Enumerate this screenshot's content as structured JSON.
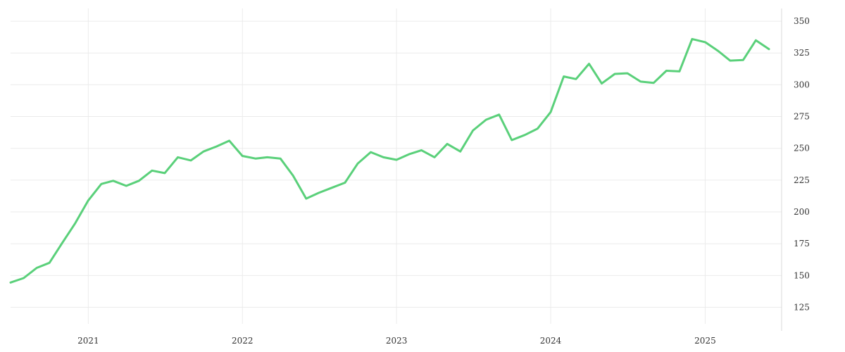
{
  "chart_data": {
    "type": "line",
    "title": "",
    "xlabel": "",
    "ylabel": "",
    "x_ticks": [
      "2021",
      "2022",
      "2023",
      "2024",
      "2025"
    ],
    "y_ticks": [
      125,
      150,
      175,
      200,
      225,
      250,
      275,
      300,
      325,
      350
    ],
    "xlim": [
      "2020-07-01",
      "2025-07-01"
    ],
    "ylim": [
      112,
      360
    ],
    "grid": true,
    "y_axis_side": "right",
    "color": "#5ad07a",
    "series": [
      {
        "points": [
          [
            "2020-07-01",
            144.5
          ],
          [
            "2020-08-01",
            148
          ],
          [
            "2020-09-01",
            156
          ],
          [
            "2020-10-01",
            160
          ],
          [
            "2020-11-01",
            176
          ],
          [
            "2020-12-01",
            191
          ],
          [
            "2021-01-01",
            209
          ],
          [
            "2021-02-01",
            222
          ],
          [
            "2021-03-01",
            224.5
          ],
          [
            "2021-04-01",
            220.5
          ],
          [
            "2021-05-01",
            224.5
          ],
          [
            "2021-06-01",
            232.5
          ],
          [
            "2021-07-01",
            230.5
          ],
          [
            "2021-08-01",
            243
          ],
          [
            "2021-09-01",
            240.5
          ],
          [
            "2021-10-01",
            247.5
          ],
          [
            "2021-11-01",
            251.5
          ],
          [
            "2021-12-01",
            256
          ],
          [
            "2022-01-01",
            244
          ],
          [
            "2022-02-01",
            242
          ],
          [
            "2022-03-01",
            243
          ],
          [
            "2022-04-01",
            242
          ],
          [
            "2022-05-01",
            228.5
          ],
          [
            "2022-06-01",
            210.5
          ],
          [
            "2022-07-01",
            215
          ],
          [
            "2022-08-01",
            219
          ],
          [
            "2022-09-01",
            223
          ],
          [
            "2022-10-01",
            238
          ],
          [
            "2022-11-01",
            247
          ],
          [
            "2022-12-01",
            243
          ],
          [
            "2023-01-01",
            241
          ],
          [
            "2023-02-01",
            245.5
          ],
          [
            "2023-03-01",
            248.5
          ],
          [
            "2023-04-01",
            243
          ],
          [
            "2023-05-01",
            253.5
          ],
          [
            "2023-06-01",
            247.5
          ],
          [
            "2023-07-01",
            264
          ],
          [
            "2023-08-01",
            272.5
          ],
          [
            "2023-09-01",
            276.5
          ],
          [
            "2023-10-01",
            256.5
          ],
          [
            "2023-11-01",
            260.5
          ],
          [
            "2023-12-01",
            265.5
          ],
          [
            "2024-01-01",
            278.5
          ],
          [
            "2024-02-01",
            306.5
          ],
          [
            "2024-03-01",
            304.5
          ],
          [
            "2024-04-01",
            316.5
          ],
          [
            "2024-05-01",
            301
          ],
          [
            "2024-06-01",
            308.5
          ],
          [
            "2024-07-01",
            309
          ],
          [
            "2024-08-01",
            302.5
          ],
          [
            "2024-09-01",
            301.5
          ],
          [
            "2024-10-01",
            311
          ],
          [
            "2024-11-01",
            310.5
          ],
          [
            "2024-12-01",
            336
          ],
          [
            "2025-01-01",
            333.5
          ],
          [
            "2025-02-01",
            326.5
          ],
          [
            "2025-03-01",
            319
          ],
          [
            "2025-04-01",
            319.5
          ],
          [
            "2025-05-01",
            335
          ],
          [
            "2025-06-01",
            328
          ]
        ]
      }
    ]
  }
}
